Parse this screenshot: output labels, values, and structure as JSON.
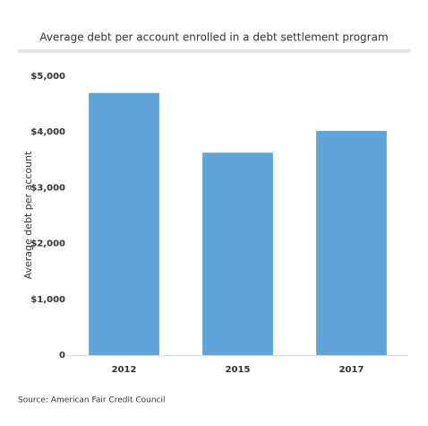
{
  "chart_data": {
    "type": "bar",
    "title": "Average debt per account enrolled in a debt settlement program",
    "y_label": "Average debt per account",
    "source": "Source: American Fair Credit Council",
    "categories": [
      "2012",
      "2015",
      "2017"
    ],
    "values": [
      4700,
      3630,
      4020
    ],
    "color": "#5fa5d9",
    "ylim": [
      0,
      5000
    ],
    "yticks": [
      0,
      {
        "value": 1000,
        "label": "$1,000"
      },
      {
        "value": 2000,
        "label": "$2,000"
      },
      {
        "value": 3000,
        "label": "$3,000"
      },
      {
        "value": 4000,
        "label": "$4,000"
      },
      {
        "value": 5000,
        "label": "$5,000"
      }
    ],
    "grid": false
  }
}
